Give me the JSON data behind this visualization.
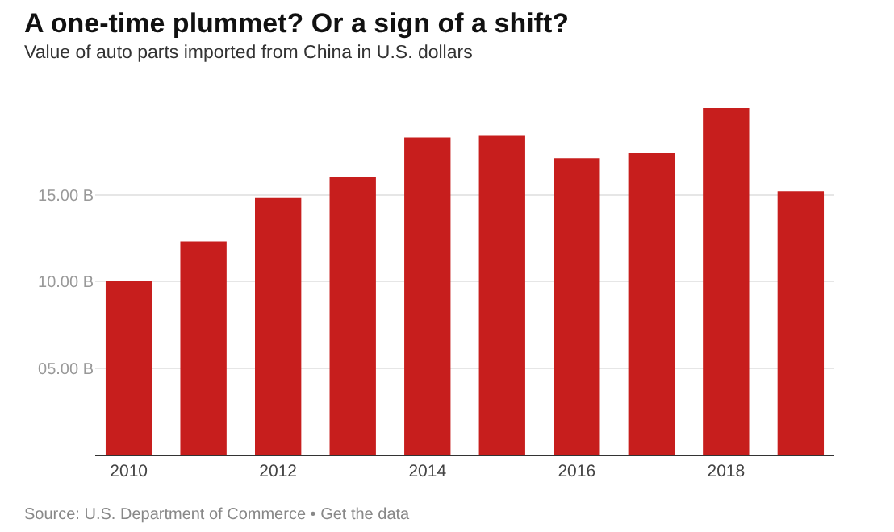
{
  "chart_data": {
    "type": "bar",
    "title": "A one-time plummet? Or a sign of a shift?",
    "subtitle": "Value of auto parts imported from China in U.S. dollars",
    "x": [
      2010,
      2011,
      2012,
      2013,
      2014,
      2015,
      2016,
      2017,
      2018,
      2019
    ],
    "values": [
      10.0,
      12.3,
      14.8,
      16.0,
      18.3,
      18.4,
      17.1,
      17.4,
      20.0,
      15.2
    ],
    "color": "#c71e1d",
    "xlim": [
      2009.55,
      2019.45
    ],
    "xticks": [
      2010,
      2012,
      2014,
      2016,
      2018
    ],
    "ylim": [
      0,
      20
    ],
    "yticks": [
      {
        "value": 5,
        "label": "05.00 B"
      },
      {
        "value": 10,
        "label": "10.00 B"
      },
      {
        "value": 15,
        "label": "15.00 B"
      }
    ],
    "grid": "y",
    "annotations": [
      "Source: U.S. Department of Commerce • Get the data"
    ]
  }
}
